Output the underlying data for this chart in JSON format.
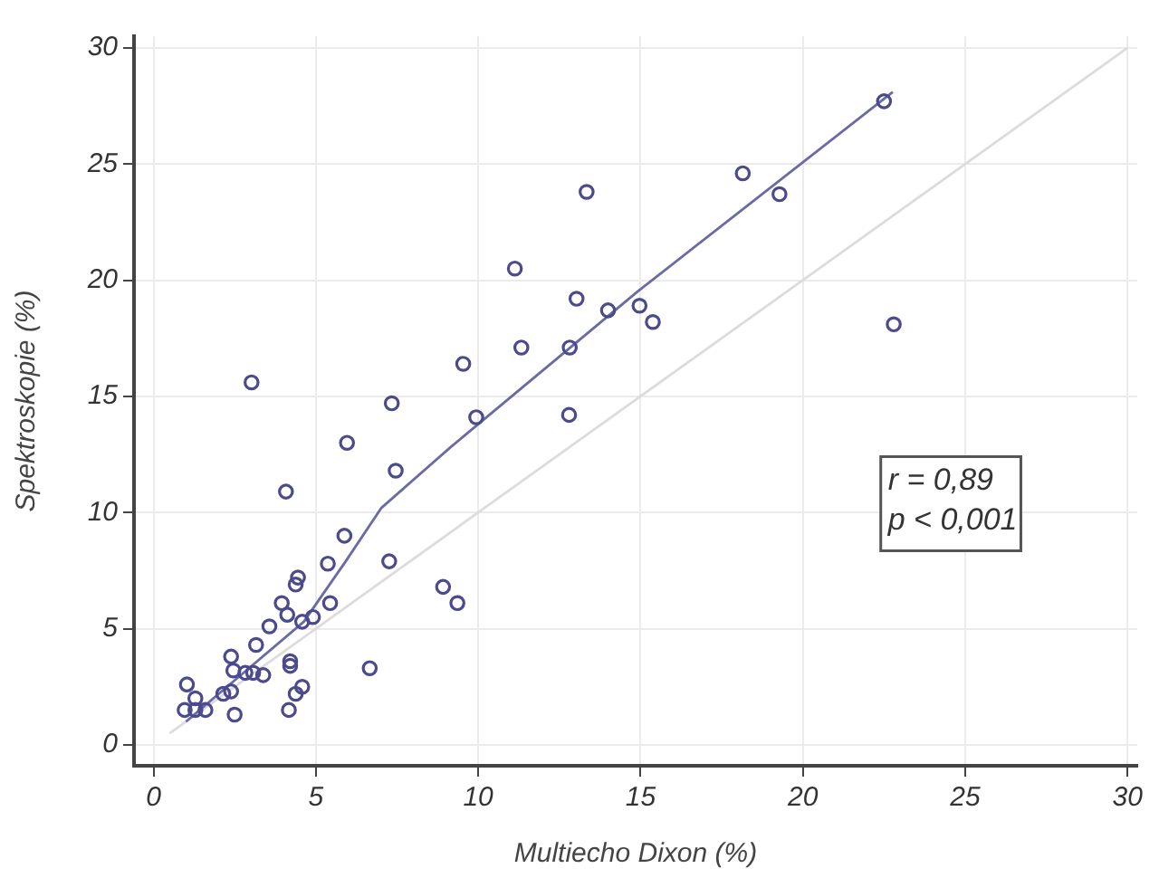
{
  "chart_data": {
    "type": "scatter",
    "xlabel": "Multiecho Dixon (%)",
    "ylabel": "Spektroskopie (%)",
    "xlim": [
      -0.6,
      30.3
    ],
    "ylim": [
      -0.9,
      30.5
    ],
    "xticks": [
      0,
      5,
      10,
      15,
      20,
      25,
      30
    ],
    "yticks": [
      0,
      5,
      10,
      15,
      20,
      25,
      30
    ],
    "grid": true,
    "marker": "circle",
    "legend": false,
    "annotations": [
      "r = 0,89",
      "p < 0,001"
    ],
    "series": [
      {
        "type": "line",
        "color": "#dcdcdc",
        "marker": "none",
        "x": [
          0.5,
          30
        ],
        "values": [
          0.5,
          30
        ]
      },
      {
        "type": "line",
        "color": "#6a6aa6",
        "marker": "none",
        "x": [
          1.0,
          4.63,
          5.92,
          7.02,
          9.14,
          14.9,
          22.77
        ],
        "values": [
          1.0,
          5.3,
          7.9,
          10.2,
          12.8,
          19.5,
          28.1
        ]
      },
      {
        "type": "scatter",
        "color": "#4a4a8c",
        "x": [
          3.02,
          5.96,
          7.34,
          9.54,
          9.94,
          12.8,
          11.33,
          11.13,
          12.82,
          13.03,
          13.34,
          14.0,
          14.97,
          15.38,
          18.15,
          19.28,
          22.5,
          22.8,
          4.08,
          7.46,
          5.88,
          7.26,
          5.37,
          4.45,
          4.38,
          3.95,
          5.44,
          8.92,
          9.36,
          4.12,
          4.58,
          4.91,
          3.57,
          3.16,
          2.39,
          4.21,
          4.21,
          6.66,
          2.46,
          2.83,
          3.38,
          3.07,
          1.03,
          4.58,
          2.39,
          2.15,
          4.38,
          1.29,
          0.96,
          1.29,
          1.6,
          4.17,
          2.5
        ],
        "values": [
          15.6,
          13.0,
          14.7,
          16.4,
          14.1,
          14.2,
          17.1,
          20.5,
          17.1,
          19.2,
          23.8,
          18.7,
          18.9,
          18.2,
          24.6,
          23.7,
          27.7,
          18.1,
          10.9,
          11.8,
          9.0,
          7.9,
          7.8,
          7.2,
          6.9,
          6.1,
          6.1,
          6.8,
          6.1,
          5.6,
          5.3,
          5.5,
          5.1,
          4.3,
          3.8,
          3.6,
          3.4,
          3.3,
          3.2,
          3.1,
          3.0,
          3.1,
          2.6,
          2.5,
          2.3,
          2.2,
          2.2,
          2.0,
          1.5,
          1.5,
          1.5,
          1.5,
          1.3
        ]
      }
    ]
  }
}
